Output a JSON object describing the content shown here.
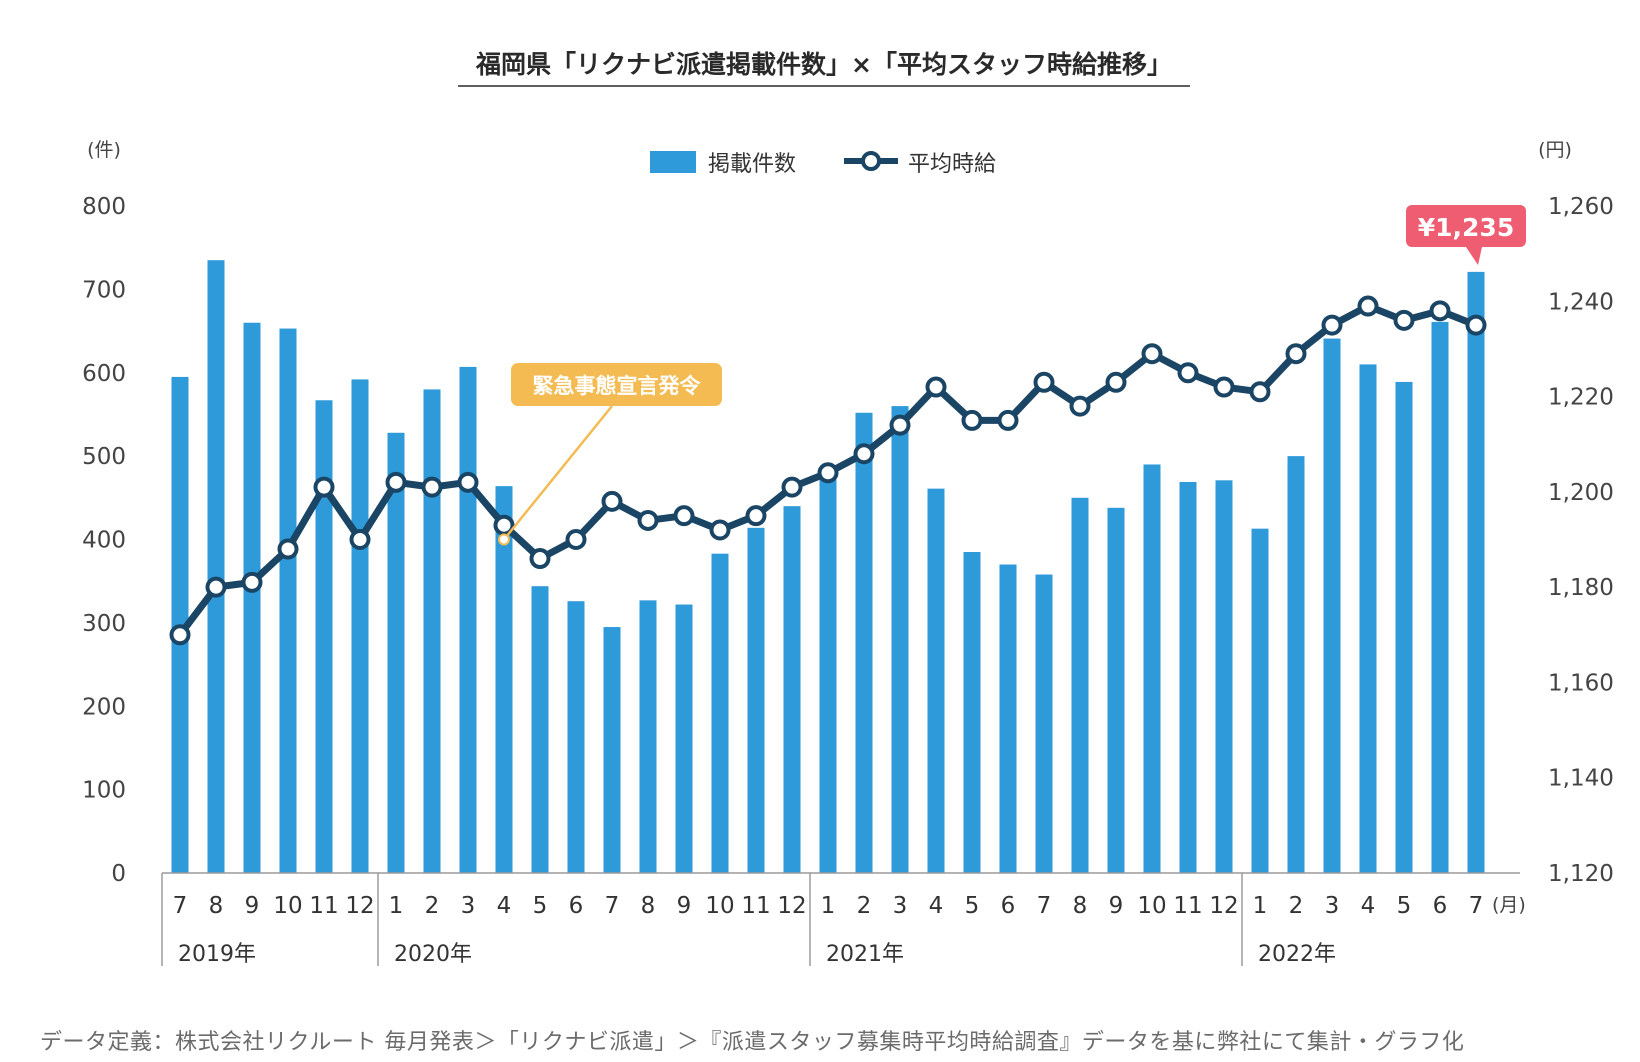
{
  "chart_data": {
    "type": "bar+line",
    "title": "福岡県「リクナビ派遣掲載件数」×「平均スタッフ時給推移」",
    "left_axis": {
      "unit": "(件)",
      "ylim": [
        0,
        800
      ],
      "ticks": [
        "0",
        "100",
        "200",
        "300",
        "400",
        "500",
        "600",
        "700",
        "800"
      ]
    },
    "right_axis": {
      "unit": "(円)",
      "ylim": [
        1120,
        1260
      ],
      "ticks": [
        "1,120",
        "1,140",
        "1,160",
        "1,180",
        "1,200",
        "1,220",
        "1,240",
        "1,260"
      ]
    },
    "x_unit": "(月)",
    "categories": [
      "7",
      "8",
      "9",
      "10",
      "11",
      "12",
      "1",
      "2",
      "3",
      "4",
      "5",
      "6",
      "7",
      "8",
      "9",
      "10",
      "11",
      "12",
      "1",
      "2",
      "3",
      "4",
      "5",
      "6",
      "7",
      "8",
      "9",
      "10",
      "11",
      "12",
      "1",
      "2",
      "3",
      "4",
      "5",
      "6",
      "7"
    ],
    "years": [
      {
        "label": "2019年",
        "start_index": 0
      },
      {
        "label": "2020年",
        "start_index": 6
      },
      {
        "label": "2021年",
        "start_index": 18
      },
      {
        "label": "2022年",
        "start_index": 30
      }
    ],
    "series": [
      {
        "name": "掲載件数",
        "type": "bar",
        "axis": "left",
        "color": "#2e9ad9",
        "values": [
          595,
          735,
          660,
          653,
          567,
          592,
          528,
          580,
          607,
          464,
          344,
          326,
          295,
          327,
          322,
          383,
          414,
          440,
          472,
          552,
          560,
          461,
          385,
          370,
          358,
          450,
          438,
          490,
          469,
          471,
          413,
          500,
          641,
          610,
          589,
          661,
          721
        ]
      },
      {
        "name": "平均時給",
        "type": "line",
        "axis": "right",
        "color": "#1a4565",
        "values": [
          1170,
          1180,
          1181,
          1188,
          1201,
          1190,
          1202,
          1201,
          1202,
          1193,
          1186,
          1190,
          1198,
          1194,
          1195,
          1192,
          1195,
          1201,
          1204,
          1208,
          1214,
          1222,
          1215,
          1215,
          1223,
          1218,
          1223,
          1229,
          1225,
          1222,
          1221,
          1229,
          1235,
          1239,
          1236,
          1238,
          1235
        ]
      }
    ],
    "annotations": [
      {
        "text": "緊急事態宣言発令",
        "color": "#f3bb52",
        "at_category_index": 9,
        "at_value": 400
      },
      {
        "text": "¥1,235",
        "color": "#ee5d72",
        "at_category_index": 36
      }
    ],
    "legend": "top-center"
  },
  "footnote": "データ定義：株式会社リクルート 毎月発表＞「リクナビ派遣」＞『派遣スタッフ募集時平均時給調査』データを基に弊社にて集計・グラフ化"
}
